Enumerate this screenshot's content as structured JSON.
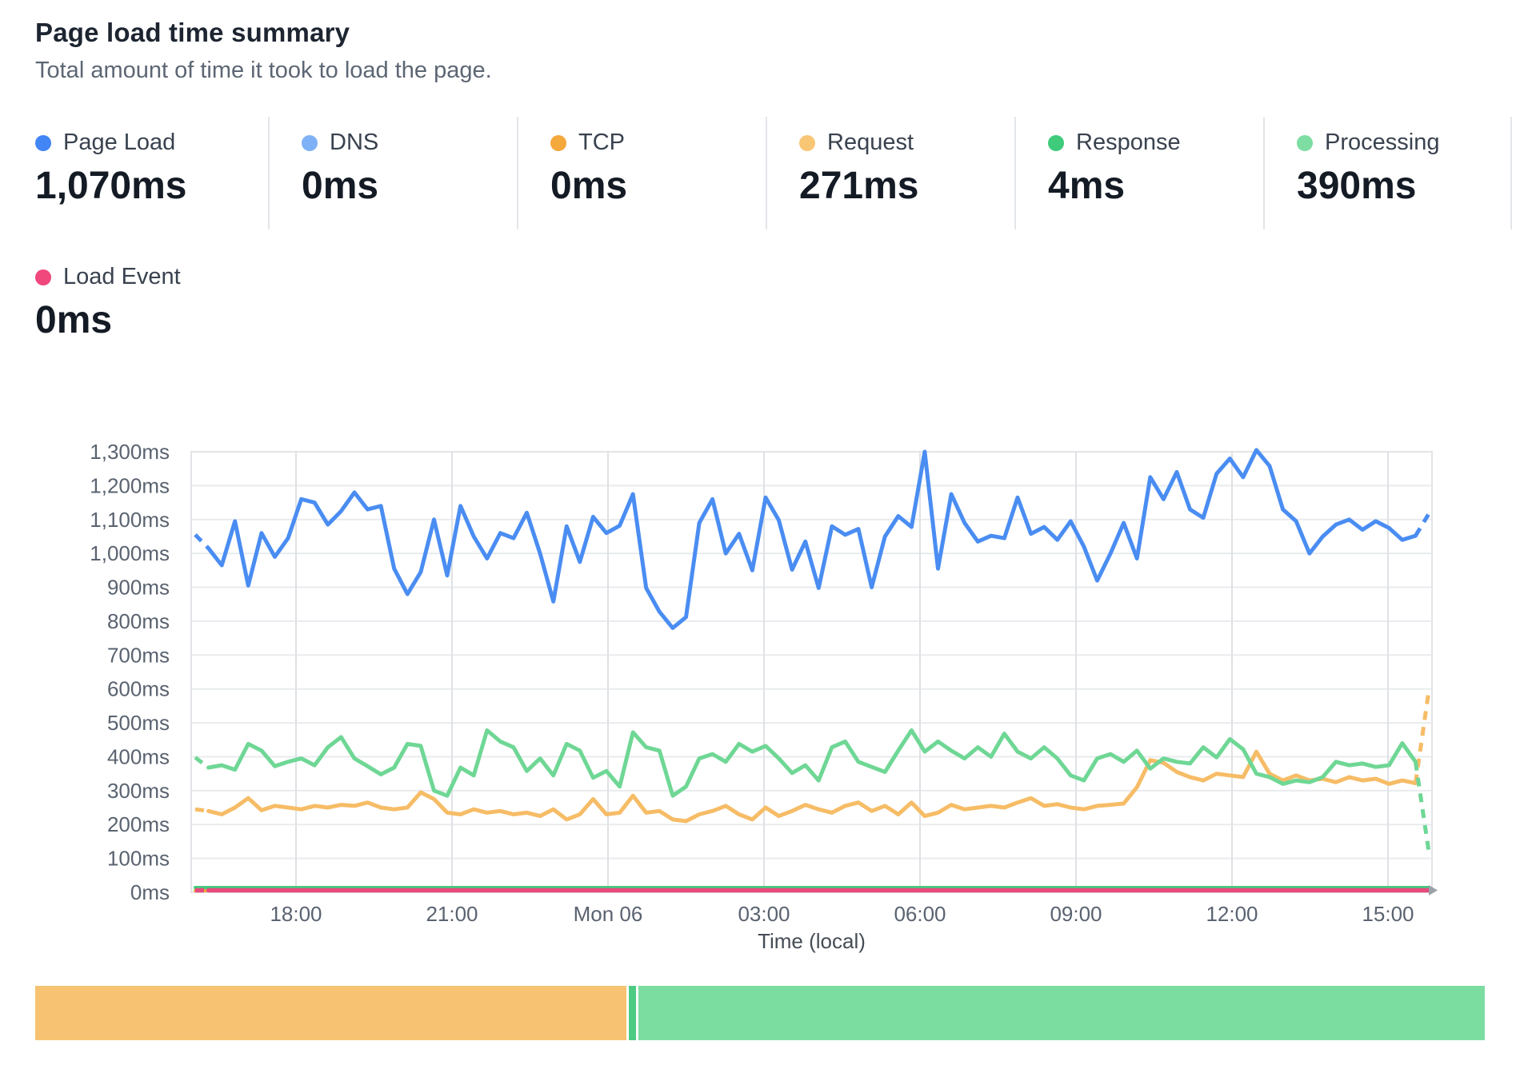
{
  "header": {
    "title": "Page load time summary",
    "subtitle": "Total amount of time it took to load the page."
  },
  "stats": [
    {
      "label": "Page Load",
      "value": "1,070ms",
      "color": "#4285f4"
    },
    {
      "label": "DNS",
      "value": "0ms",
      "color": "#7fb1f7"
    },
    {
      "label": "TCP",
      "value": "0ms",
      "color": "#f5a83c"
    },
    {
      "label": "Request",
      "value": "271ms",
      "color": "#f8c674"
    },
    {
      "label": "Response",
      "value": "4ms",
      "color": "#3ecb7c"
    },
    {
      "label": "Processing",
      "value": "390ms",
      "color": "#7edda2"
    }
  ],
  "stats_row2": [
    {
      "label": "Load Event",
      "value": "0ms",
      "color": "#f0477d"
    }
  ],
  "chart_data": {
    "type": "line",
    "xlabel": "Time (local)",
    "ylabel": "",
    "ylim": [
      0,
      1300
    ],
    "grid": true,
    "x_ticks": [
      "18:00",
      "21:00",
      "Mon 06",
      "03:00",
      "06:00",
      "09:00",
      "12:00",
      "15:00"
    ],
    "y_ticks": [
      "0ms",
      "100ms",
      "200ms",
      "300ms",
      "400ms",
      "500ms",
      "600ms",
      "700ms",
      "800ms",
      "900ms",
      "1,000ms",
      "1,100ms",
      "1,200ms",
      "1,300ms"
    ],
    "y_tick_step_ms": 100,
    "series": [
      {
        "name": "Page Load",
        "color": "#4a8df2",
        "dash_head": 1,
        "dash_tail": 1,
        "values": [
          1055,
          1015,
          965,
          1095,
          905,
          1060,
          990,
          1045,
          1160,
          1150,
          1085,
          1125,
          1180,
          1130,
          1140,
          955,
          880,
          945,
          1100,
          935,
          1140,
          1050,
          985,
          1060,
          1045,
          1120,
          1000,
          858,
          1080,
          975,
          1108,
          1060,
          1082,
          1175,
          898,
          828,
          780,
          812,
          1090,
          1160,
          1000,
          1058,
          950,
          1165,
          1098,
          952,
          1035,
          898,
          1080,
          1055,
          1072,
          900,
          1050,
          1110,
          1078,
          1300,
          955,
          1175,
          1090,
          1035,
          1052,
          1045,
          1165,
          1058,
          1078,
          1040,
          1095,
          1020,
          920,
          1000,
          1090,
          985,
          1225,
          1160,
          1240,
          1130,
          1105,
          1235,
          1280,
          1225,
          1305,
          1258,
          1130,
          1095,
          1000,
          1050,
          1085,
          1100,
          1070,
          1095,
          1075,
          1040,
          1052,
          1117
        ]
      },
      {
        "name": "Processing",
        "color": "#6fd795",
        "dash_head": 1,
        "dash_tail": 1,
        "values": [
          398,
          368,
          375,
          362,
          438,
          418,
          372,
          385,
          395,
          375,
          428,
          458,
          395,
          372,
          348,
          368,
          438,
          432,
          300,
          285,
          368,
          345,
          478,
          445,
          428,
          358,
          395,
          345,
          438,
          418,
          338,
          358,
          312,
          472,
          428,
          418,
          285,
          312,
          395,
          408,
          385,
          438,
          415,
          432,
          395,
          352,
          375,
          330,
          428,
          445,
          385,
          370,
          355,
          418,
          478,
          415,
          445,
          418,
          395,
          428,
          400,
          468,
          415,
          395,
          428,
          395,
          345,
          330,
          395,
          408,
          385,
          418,
          365,
          395,
          385,
          380,
          428,
          398,
          452,
          422,
          350,
          340,
          320,
          330,
          325,
          340,
          385,
          375,
          380,
          370,
          375,
          440,
          385,
          120
        ]
      },
      {
        "name": "Request",
        "color": "#f6bc66",
        "dash_head": 1,
        "dash_tail": 1,
        "values": [
          245,
          240,
          230,
          250,
          278,
          242,
          255,
          250,
          245,
          255,
          250,
          258,
          255,
          265,
          250,
          245,
          250,
          295,
          275,
          235,
          230,
          245,
          235,
          240,
          230,
          235,
          225,
          245,
          215,
          230,
          275,
          230,
          235,
          285,
          235,
          240,
          215,
          210,
          230,
          240,
          255,
          230,
          215,
          250,
          225,
          240,
          258,
          245,
          235,
          255,
          265,
          240,
          255,
          230,
          265,
          225,
          235,
          258,
          245,
          250,
          255,
          250,
          265,
          278,
          255,
          260,
          250,
          245,
          255,
          258,
          262,
          310,
          390,
          382,
          355,
          340,
          330,
          350,
          345,
          340,
          415,
          350,
          330,
          345,
          330,
          335,
          325,
          340,
          330,
          335,
          320,
          330,
          322,
          595
        ]
      },
      {
        "name": "Response",
        "color": "#44ca7e",
        "values": [
          4,
          4
        ]
      },
      {
        "name": "DNS",
        "color": "#7fb1f7",
        "values": [
          0,
          0
        ]
      },
      {
        "name": "TCP",
        "color": "#f2a83c",
        "values": [
          0,
          0
        ]
      },
      {
        "name": "Load Event",
        "color": "#e74a7c",
        "dash_head": 1,
        "values": [
          0,
          0,
          0,
          0,
          0,
          0,
          0,
          0,
          0,
          0,
          0,
          0,
          0,
          0,
          0,
          0,
          0,
          0,
          0,
          0,
          0,
          0,
          0,
          0,
          0,
          0,
          0,
          0,
          0,
          0,
          0,
          0,
          0,
          0,
          0,
          0,
          0,
          0,
          0,
          0,
          0,
          0,
          0,
          0,
          0,
          0,
          0,
          0,
          0,
          0,
          0,
          0,
          0,
          0,
          0,
          0,
          0,
          0,
          0,
          0,
          0,
          0,
          0,
          0,
          0,
          0,
          0,
          0,
          0,
          0,
          0,
          0,
          0,
          0,
          0,
          0,
          0,
          0,
          0,
          0,
          0,
          0,
          0,
          0,
          0,
          0,
          0,
          0,
          0,
          0,
          0,
          0,
          0,
          0
        ]
      }
    ]
  },
  "footer_bar": {
    "segments": [
      {
        "name": "Request",
        "color": "#f7c271",
        "percent": 40.9
      },
      {
        "name": "Response",
        "color": "#4dcb83",
        "percent": 0.5
      },
      {
        "name": "Processing",
        "color": "#7cdda1",
        "percent": 58.6
      }
    ]
  }
}
